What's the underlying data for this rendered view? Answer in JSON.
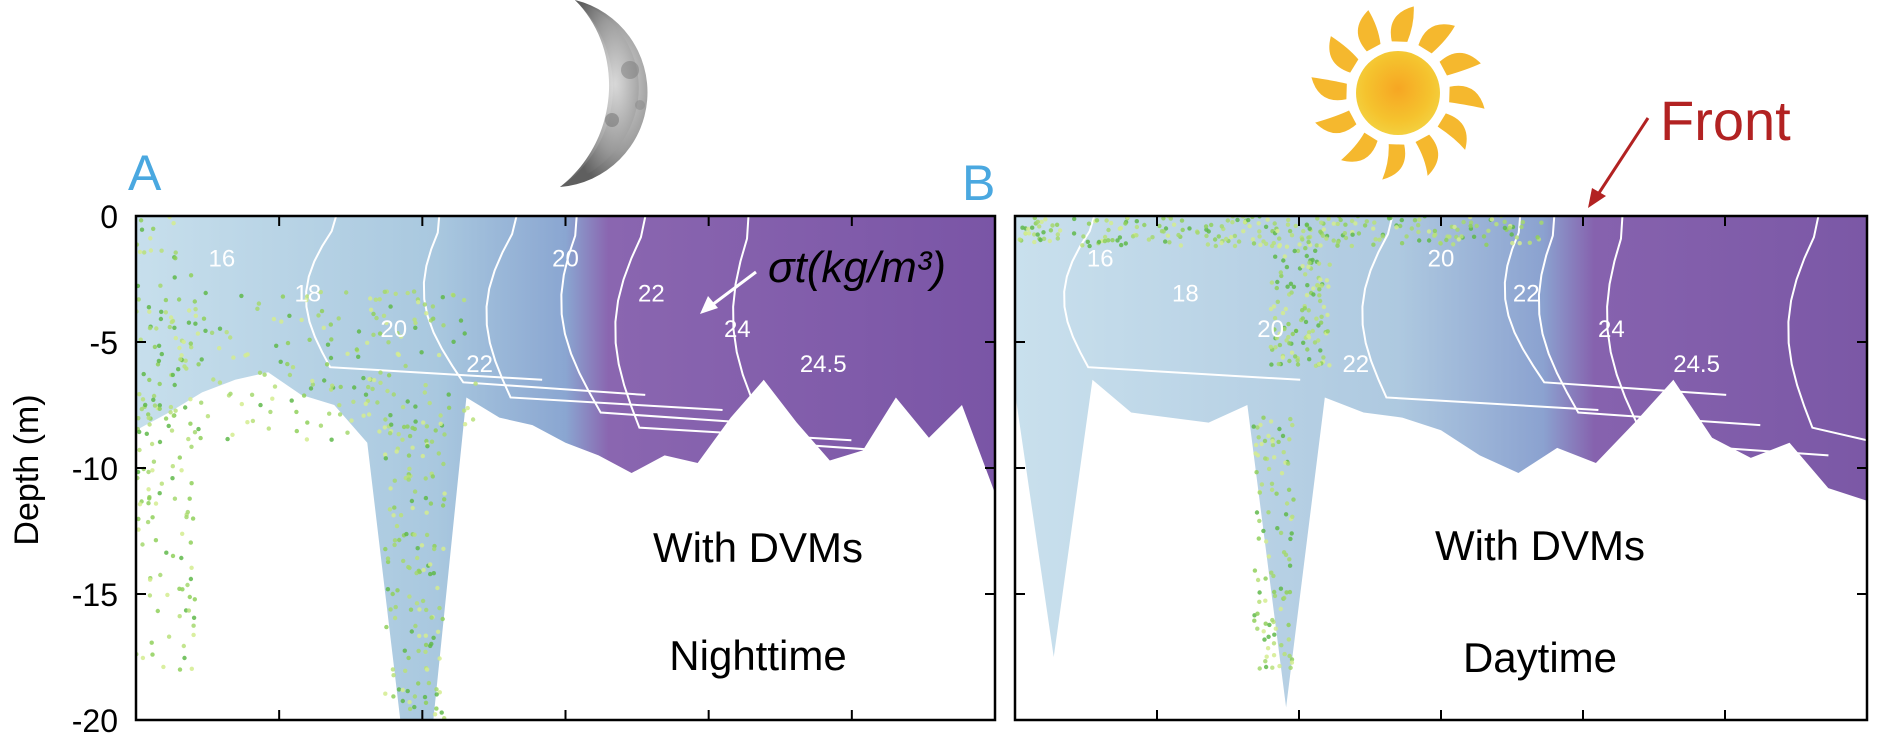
{
  "figure": {
    "ylabel": "Depth (m)",
    "moon_icon": "crescent-moon-icon",
    "sun_icon": "sun-icon",
    "front_label": "Front",
    "sigma_label": "σt(kg/m³)",
    "panel_a_label_color": "#4aa8e0",
    "front_color": "#b22222",
    "light_water_color": "#c4dcea",
    "dense_water_color": "#7d5aa8",
    "phyto_color": "#7ec850"
  },
  "chart_data": [
    {
      "type": "contour",
      "panel_label": "A",
      "text_lines": [
        "With DVMs",
        "Nighttime"
      ],
      "ylabel": "Depth (m)",
      "yticks": [
        0,
        -5,
        -10,
        -15,
        -20
      ],
      "ylim": [
        -20,
        0
      ],
      "contour_labels": [
        "16",
        "18",
        "20",
        "22",
        "20",
        "22",
        "24",
        "24.5"
      ],
      "contour_levels": [
        16,
        18,
        20,
        22,
        24,
        24.5
      ],
      "sigma_annotation": "24.5",
      "bottom_depth": [
        -8.5,
        -7.8,
        -7.0,
        -6.5,
        -6.2,
        -7.1,
        -7.5,
        -9,
        -20,
        -20,
        -7.2,
        -8.0,
        -8.3,
        -9.0,
        -9.5,
        -10.2,
        -9.5,
        -9.8,
        -8.0,
        -6.5,
        -8.2,
        -9.7,
        -9.3,
        -7.2,
        -8.8,
        -7.5,
        -11.0
      ]
    },
    {
      "type": "contour",
      "panel_label": "B",
      "text_lines": [
        "With DVMs",
        "Daytime"
      ],
      "ylabel": "",
      "yticks": [
        0,
        -5,
        -10,
        -15,
        -20
      ],
      "ylim": [
        -20,
        0
      ],
      "contour_labels": [
        "16",
        "18",
        "20",
        "22",
        "20",
        "22",
        "24",
        "24.5"
      ],
      "contour_levels": [
        16,
        18,
        20,
        22,
        24,
        24.5
      ],
      "bottom_depth": [
        -7.0,
        -17.5,
        -6.5,
        -7.8,
        -8.0,
        -8.2,
        -7.5,
        -19.5,
        -7.2,
        -7.8,
        -8.0,
        -8.5,
        -9.5,
        -10.2,
        -9.2,
        -9.8,
        -8.2,
        -6.5,
        -8.8,
        -9.6,
        -9.0,
        -10.8,
        -11.3
      ]
    }
  ]
}
